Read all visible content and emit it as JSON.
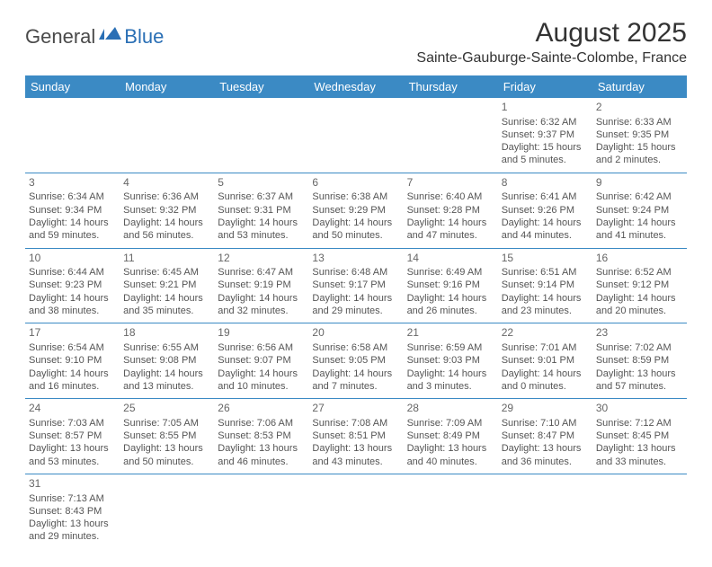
{
  "logo": {
    "text_a": "General",
    "text_b": "Blue"
  },
  "title": "August 2025",
  "location": "Sainte-Gauburge-Sainte-Colombe, France",
  "header_bg": "#3b8ac4",
  "header_fg": "#ffffff",
  "border_color": "#3b8ac4",
  "text_color": "#555555",
  "columns": [
    "Sunday",
    "Monday",
    "Tuesday",
    "Wednesday",
    "Thursday",
    "Friday",
    "Saturday"
  ],
  "weeks": [
    [
      null,
      null,
      null,
      null,
      null,
      {
        "n": "1",
        "sr": "6:32 AM",
        "ss": "9:37 PM",
        "dl": "15 hours and 5 minutes."
      },
      {
        "n": "2",
        "sr": "6:33 AM",
        "ss": "9:35 PM",
        "dl": "15 hours and 2 minutes."
      }
    ],
    [
      {
        "n": "3",
        "sr": "6:34 AM",
        "ss": "9:34 PM",
        "dl": "14 hours and 59 minutes."
      },
      {
        "n": "4",
        "sr": "6:36 AM",
        "ss": "9:32 PM",
        "dl": "14 hours and 56 minutes."
      },
      {
        "n": "5",
        "sr": "6:37 AM",
        "ss": "9:31 PM",
        "dl": "14 hours and 53 minutes."
      },
      {
        "n": "6",
        "sr": "6:38 AM",
        "ss": "9:29 PM",
        "dl": "14 hours and 50 minutes."
      },
      {
        "n": "7",
        "sr": "6:40 AM",
        "ss": "9:28 PM",
        "dl": "14 hours and 47 minutes."
      },
      {
        "n": "8",
        "sr": "6:41 AM",
        "ss": "9:26 PM",
        "dl": "14 hours and 44 minutes."
      },
      {
        "n": "9",
        "sr": "6:42 AM",
        "ss": "9:24 PM",
        "dl": "14 hours and 41 minutes."
      }
    ],
    [
      {
        "n": "10",
        "sr": "6:44 AM",
        "ss": "9:23 PM",
        "dl": "14 hours and 38 minutes."
      },
      {
        "n": "11",
        "sr": "6:45 AM",
        "ss": "9:21 PM",
        "dl": "14 hours and 35 minutes."
      },
      {
        "n": "12",
        "sr": "6:47 AM",
        "ss": "9:19 PM",
        "dl": "14 hours and 32 minutes."
      },
      {
        "n": "13",
        "sr": "6:48 AM",
        "ss": "9:17 PM",
        "dl": "14 hours and 29 minutes."
      },
      {
        "n": "14",
        "sr": "6:49 AM",
        "ss": "9:16 PM",
        "dl": "14 hours and 26 minutes."
      },
      {
        "n": "15",
        "sr": "6:51 AM",
        "ss": "9:14 PM",
        "dl": "14 hours and 23 minutes."
      },
      {
        "n": "16",
        "sr": "6:52 AM",
        "ss": "9:12 PM",
        "dl": "14 hours and 20 minutes."
      }
    ],
    [
      {
        "n": "17",
        "sr": "6:54 AM",
        "ss": "9:10 PM",
        "dl": "14 hours and 16 minutes."
      },
      {
        "n": "18",
        "sr": "6:55 AM",
        "ss": "9:08 PM",
        "dl": "14 hours and 13 minutes."
      },
      {
        "n": "19",
        "sr": "6:56 AM",
        "ss": "9:07 PM",
        "dl": "14 hours and 10 minutes."
      },
      {
        "n": "20",
        "sr": "6:58 AM",
        "ss": "9:05 PM",
        "dl": "14 hours and 7 minutes."
      },
      {
        "n": "21",
        "sr": "6:59 AM",
        "ss": "9:03 PM",
        "dl": "14 hours and 3 minutes."
      },
      {
        "n": "22",
        "sr": "7:01 AM",
        "ss": "9:01 PM",
        "dl": "14 hours and 0 minutes."
      },
      {
        "n": "23",
        "sr": "7:02 AM",
        "ss": "8:59 PM",
        "dl": "13 hours and 57 minutes."
      }
    ],
    [
      {
        "n": "24",
        "sr": "7:03 AM",
        "ss": "8:57 PM",
        "dl": "13 hours and 53 minutes."
      },
      {
        "n": "25",
        "sr": "7:05 AM",
        "ss": "8:55 PM",
        "dl": "13 hours and 50 minutes."
      },
      {
        "n": "26",
        "sr": "7:06 AM",
        "ss": "8:53 PM",
        "dl": "13 hours and 46 minutes."
      },
      {
        "n": "27",
        "sr": "7:08 AM",
        "ss": "8:51 PM",
        "dl": "13 hours and 43 minutes."
      },
      {
        "n": "28",
        "sr": "7:09 AM",
        "ss": "8:49 PM",
        "dl": "13 hours and 40 minutes."
      },
      {
        "n": "29",
        "sr": "7:10 AM",
        "ss": "8:47 PM",
        "dl": "13 hours and 36 minutes."
      },
      {
        "n": "30",
        "sr": "7:12 AM",
        "ss": "8:45 PM",
        "dl": "13 hours and 33 minutes."
      }
    ],
    [
      {
        "n": "31",
        "sr": "7:13 AM",
        "ss": "8:43 PM",
        "dl": "13 hours and 29 minutes."
      },
      null,
      null,
      null,
      null,
      null,
      null
    ]
  ],
  "labels": {
    "sunrise": "Sunrise:",
    "sunset": "Sunset:",
    "daylight": "Daylight:"
  }
}
